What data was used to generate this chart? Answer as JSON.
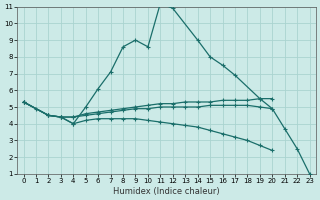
{
  "xlabel": "Humidex (Indice chaleur)",
  "bg_color": "#cceae7",
  "grid_color": "#aad4d0",
  "line_color": "#1a6e6a",
  "xlim": [
    -0.5,
    23.5
  ],
  "ylim": [
    1,
    11
  ],
  "yticks": [
    1,
    2,
    3,
    4,
    5,
    6,
    7,
    8,
    9,
    10,
    11
  ],
  "xticks": [
    0,
    1,
    2,
    3,
    4,
    5,
    6,
    7,
    8,
    9,
    10,
    11,
    12,
    13,
    14,
    15,
    16,
    17,
    18,
    19,
    20,
    21,
    22,
    23
  ],
  "series": [
    {
      "x": [
        0,
        1,
        2,
        3,
        4,
        5,
        6,
        7,
        8,
        9,
        10,
        11,
        12,
        14,
        15,
        16,
        17,
        19,
        20,
        21,
        22,
        23
      ],
      "y": [
        5.3,
        4.9,
        4.5,
        4.4,
        4.0,
        5.0,
        6.1,
        7.1,
        8.6,
        9.0,
        8.6,
        11.2,
        10.9,
        9.0,
        8.0,
        7.5,
        6.9,
        5.5,
        4.9,
        3.7,
        2.5,
        1.0
      ]
    },
    {
      "x": [
        0,
        2,
        3,
        4,
        5,
        6,
        7,
        8,
        9,
        10,
        11,
        12,
        13,
        14,
        15,
        16,
        17,
        18,
        19,
        20
      ],
      "y": [
        5.3,
        4.5,
        4.4,
        4.4,
        4.6,
        4.7,
        4.8,
        4.9,
        5.0,
        5.1,
        5.2,
        5.2,
        5.3,
        5.3,
        5.3,
        5.4,
        5.4,
        5.4,
        5.5,
        5.5
      ]
    },
    {
      "x": [
        0,
        2,
        3,
        4,
        5,
        6,
        7,
        8,
        9,
        10,
        11,
        12,
        13,
        14,
        15,
        16,
        17,
        18,
        19,
        20
      ],
      "y": [
        5.3,
        4.5,
        4.4,
        4.4,
        4.5,
        4.6,
        4.7,
        4.8,
        4.9,
        4.9,
        5.0,
        5.0,
        5.0,
        5.0,
        5.1,
        5.1,
        5.1,
        5.1,
        5.0,
        4.9
      ]
    },
    {
      "x": [
        0,
        2,
        3,
        4,
        5,
        6,
        7,
        8,
        9,
        10,
        11,
        12,
        13,
        14,
        15,
        16,
        17,
        18,
        19,
        20
      ],
      "y": [
        5.3,
        4.5,
        4.4,
        4.0,
        4.2,
        4.3,
        4.3,
        4.3,
        4.3,
        4.2,
        4.1,
        4.0,
        3.9,
        3.8,
        3.6,
        3.4,
        3.2,
        3.0,
        2.7,
        2.4
      ]
    }
  ]
}
